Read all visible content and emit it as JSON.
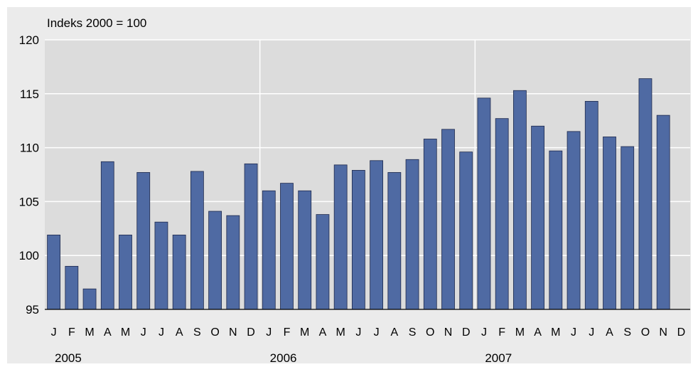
{
  "chart_data": {
    "type": "bar",
    "title": "Indeks 2000 = 100",
    "xlabel": "",
    "ylabel": "",
    "ylim": [
      95,
      120
    ],
    "yticks": [
      95,
      100,
      105,
      110,
      115,
      120
    ],
    "grid": true,
    "legend": "none",
    "years": [
      "2005",
      "2006",
      "2007"
    ],
    "categories": [
      "J",
      "F",
      "M",
      "A",
      "M",
      "J",
      "J",
      "A",
      "S",
      "O",
      "N",
      "D",
      "J",
      "F",
      "M",
      "A",
      "M",
      "J",
      "J",
      "A",
      "S",
      "O",
      "N",
      "D",
      "J",
      "F",
      "M",
      "A",
      "M",
      "J",
      "J",
      "A",
      "S",
      "O",
      "N",
      "D"
    ],
    "values": [
      101.9,
      99.0,
      96.9,
      108.7,
      101.9,
      107.7,
      103.1,
      101.9,
      107.8,
      104.1,
      103.7,
      108.5,
      106.0,
      106.7,
      106.0,
      103.8,
      108.4,
      107.9,
      108.8,
      107.7,
      108.9,
      110.8,
      111.7,
      109.6,
      114.6,
      112.7,
      115.3,
      112.0,
      109.7,
      111.5,
      114.3,
      111.0,
      110.1,
      116.4,
      113.0,
      null
    ],
    "colors": {
      "bar_fill": "#4f6aa3",
      "bar_stroke": "#1f2a4d",
      "plot_background": "#dcdcdc",
      "outer_background": "#ebebeb",
      "gridline": "#ffffff"
    }
  }
}
